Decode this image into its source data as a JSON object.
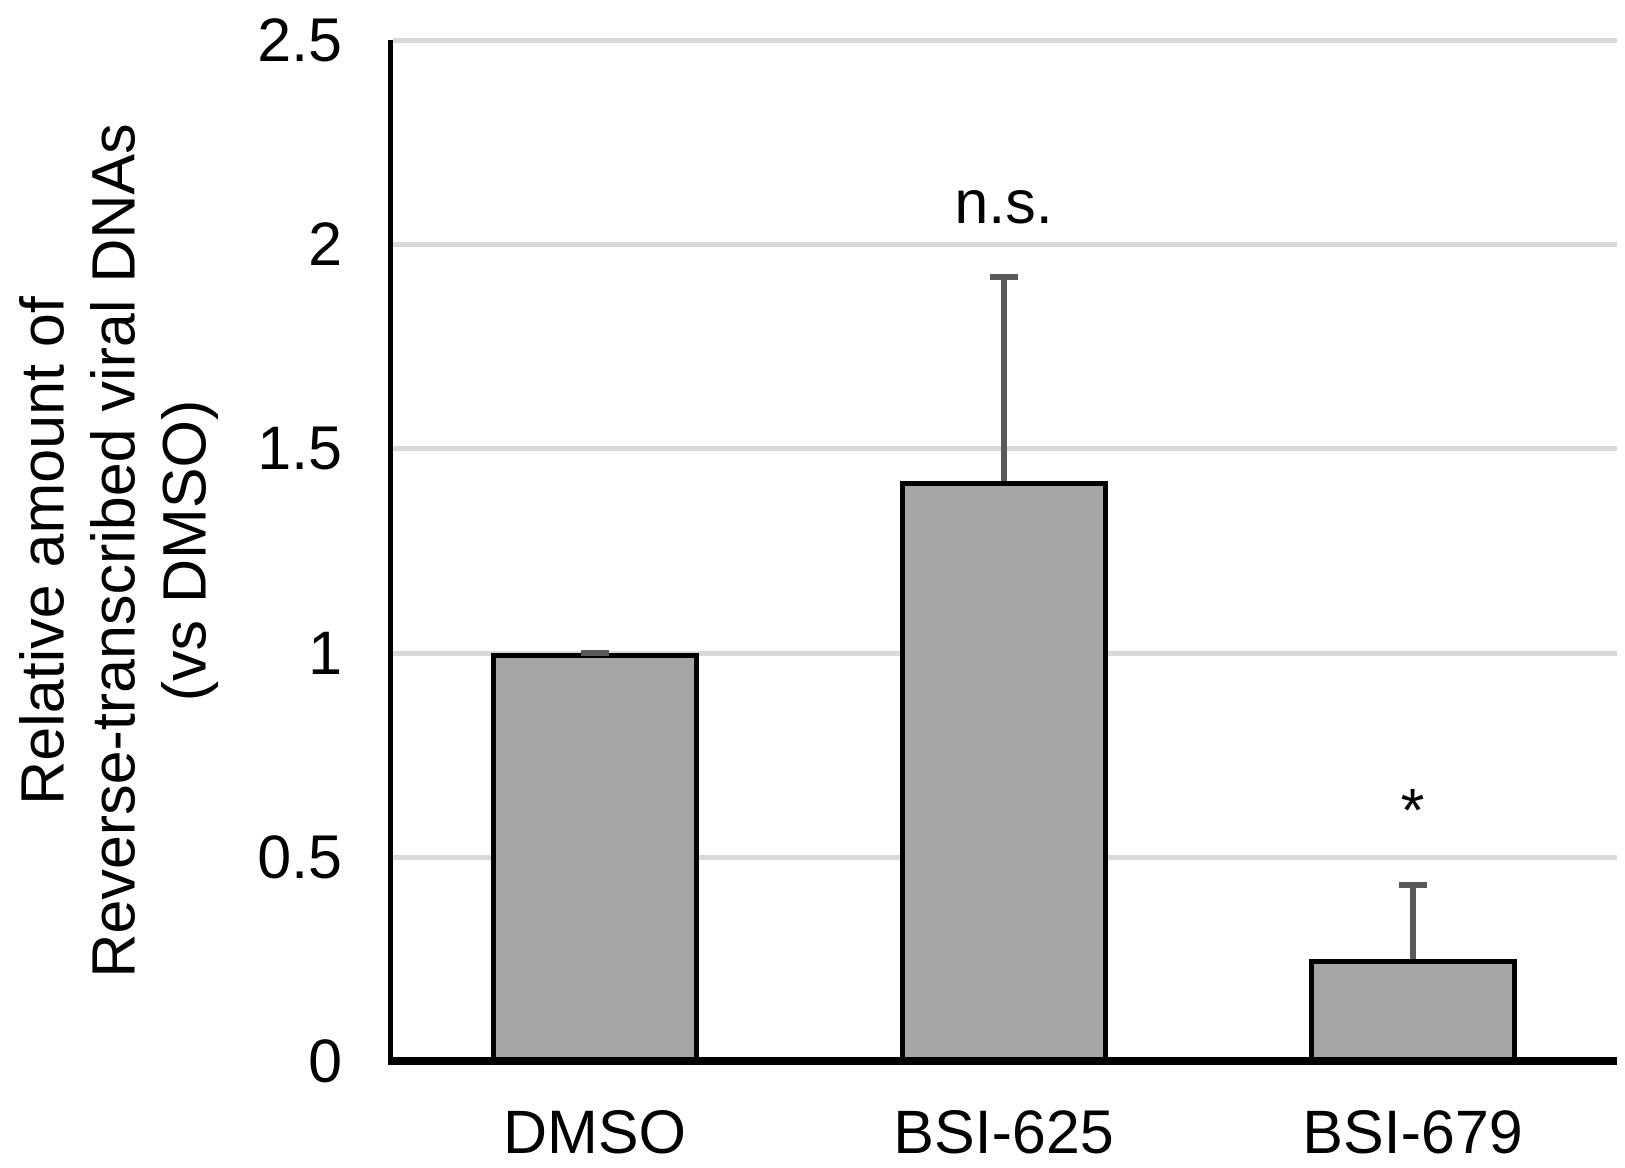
{
  "chart_data": {
    "type": "bar",
    "title": "",
    "categories": [
      "DMSO",
      "BSI-625",
      "BSI-679"
    ],
    "values": [
      1.0,
      1.42,
      0.25
    ],
    "errors_plus": [
      0.0,
      0.5,
      0.18
    ],
    "annotations": [
      "",
      "n.s.",
      "*"
    ],
    "ylabel_lines": [
      "Relative amount of",
      "Reverse-transcribed viral DNAs",
      "(vs DMSO)"
    ],
    "xlabel": "",
    "yticks": [
      0,
      0.5,
      1,
      1.5,
      2,
      2.5
    ],
    "ytick_labels": [
      "0",
      "0.5",
      "1",
      "1.5",
      "2",
      "2.5"
    ],
    "ylim": [
      0,
      2.5
    ],
    "grid": "horizontal",
    "legend": "none",
    "colors": {
      "bar_fill": "#A6A6A6",
      "bar_border": "#000000",
      "error_bar": "#595959",
      "gridline": "#D9D9D9",
      "axis": "#000000",
      "text": "#000000",
      "background": "#FFFFFF"
    }
  }
}
